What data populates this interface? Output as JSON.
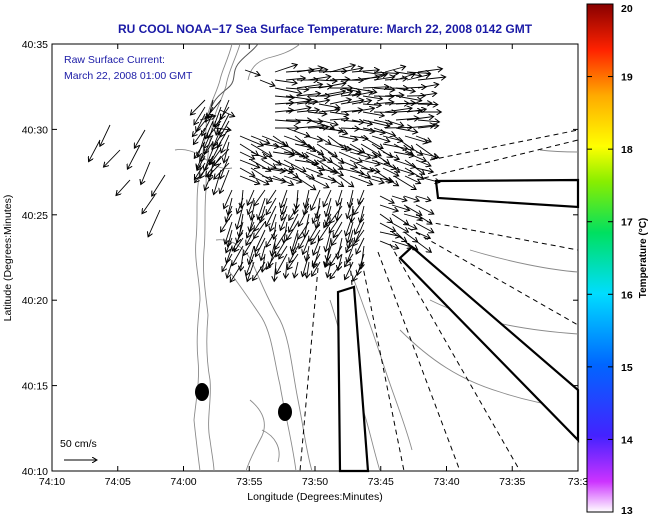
{
  "title": "RU COOL  NOAA−17  Sea Surface Temperature:  March 22, 2008 0142 GMT",
  "annotation": {
    "line1": "Raw Surface Current:",
    "line2": "March 22, 2008 01:00 GMT"
  },
  "scale_label": "50 cm/s",
  "xlabel": "Longitude (Degrees:Minutes)",
  "ylabel": "Latitude (Degrees:Minutes)",
  "x_ticks": [
    "74:10",
    "74:05",
    "74:00",
    "73:55",
    "73:50",
    "73:45",
    "73:40",
    "73:35",
    "73:3"
  ],
  "y_ticks": [
    "40:35",
    "40:30",
    "40:25",
    "40:20",
    "40:15",
    "40:10"
  ],
  "colorbar": {
    "label": "Temperature (°C)",
    "ticks": [
      "20",
      "19",
      "18",
      "17",
      "16",
      "15",
      "14",
      "13"
    ],
    "min": 13,
    "max": 20
  },
  "colors": {
    "title": "#1a1aa6",
    "contour": "#8a8a8a",
    "vector": "#000000"
  }
}
